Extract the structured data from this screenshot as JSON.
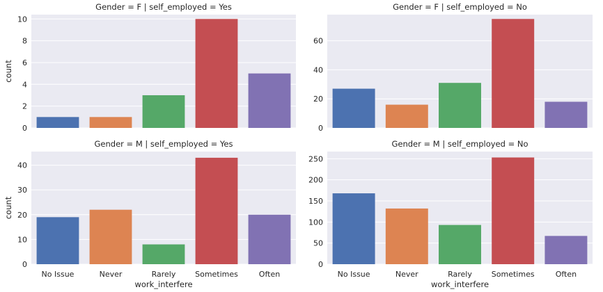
{
  "chart_data": {
    "type": "bar",
    "xlabel": "work_interfere",
    "ylabel": "count",
    "categories": [
      "No Issue",
      "Never",
      "Rarely",
      "Sometimes",
      "Often"
    ],
    "colors": [
      "#4c72b0",
      "#dd8452",
      "#55a868",
      "#c44e52",
      "#8172b3"
    ],
    "grid": true,
    "facets": [
      {
        "title": "Gender = F | self_employed = Yes",
        "values": [
          1,
          1,
          3,
          10,
          5
        ],
        "ylim": [
          0,
          10.4
        ],
        "yticks": [
          0,
          2,
          4,
          6,
          8,
          10
        ]
      },
      {
        "title": "Gender = F | self_employed = No",
        "values": [
          27,
          16,
          31,
          75,
          18
        ],
        "ylim": [
          0,
          78
        ],
        "yticks": [
          0,
          20,
          40,
          60
        ]
      },
      {
        "title": "Gender = M | self_employed = Yes",
        "values": [
          19,
          22,
          8,
          43,
          20
        ],
        "ylim": [
          0,
          45.5
        ],
        "yticks": [
          0,
          10,
          20,
          30,
          40
        ]
      },
      {
        "title": "Gender = M | self_employed = No",
        "values": [
          168,
          132,
          93,
          253,
          67
        ],
        "ylim": [
          0,
          267
        ],
        "yticks": [
          0,
          50,
          100,
          150,
          200,
          250
        ]
      }
    ]
  }
}
